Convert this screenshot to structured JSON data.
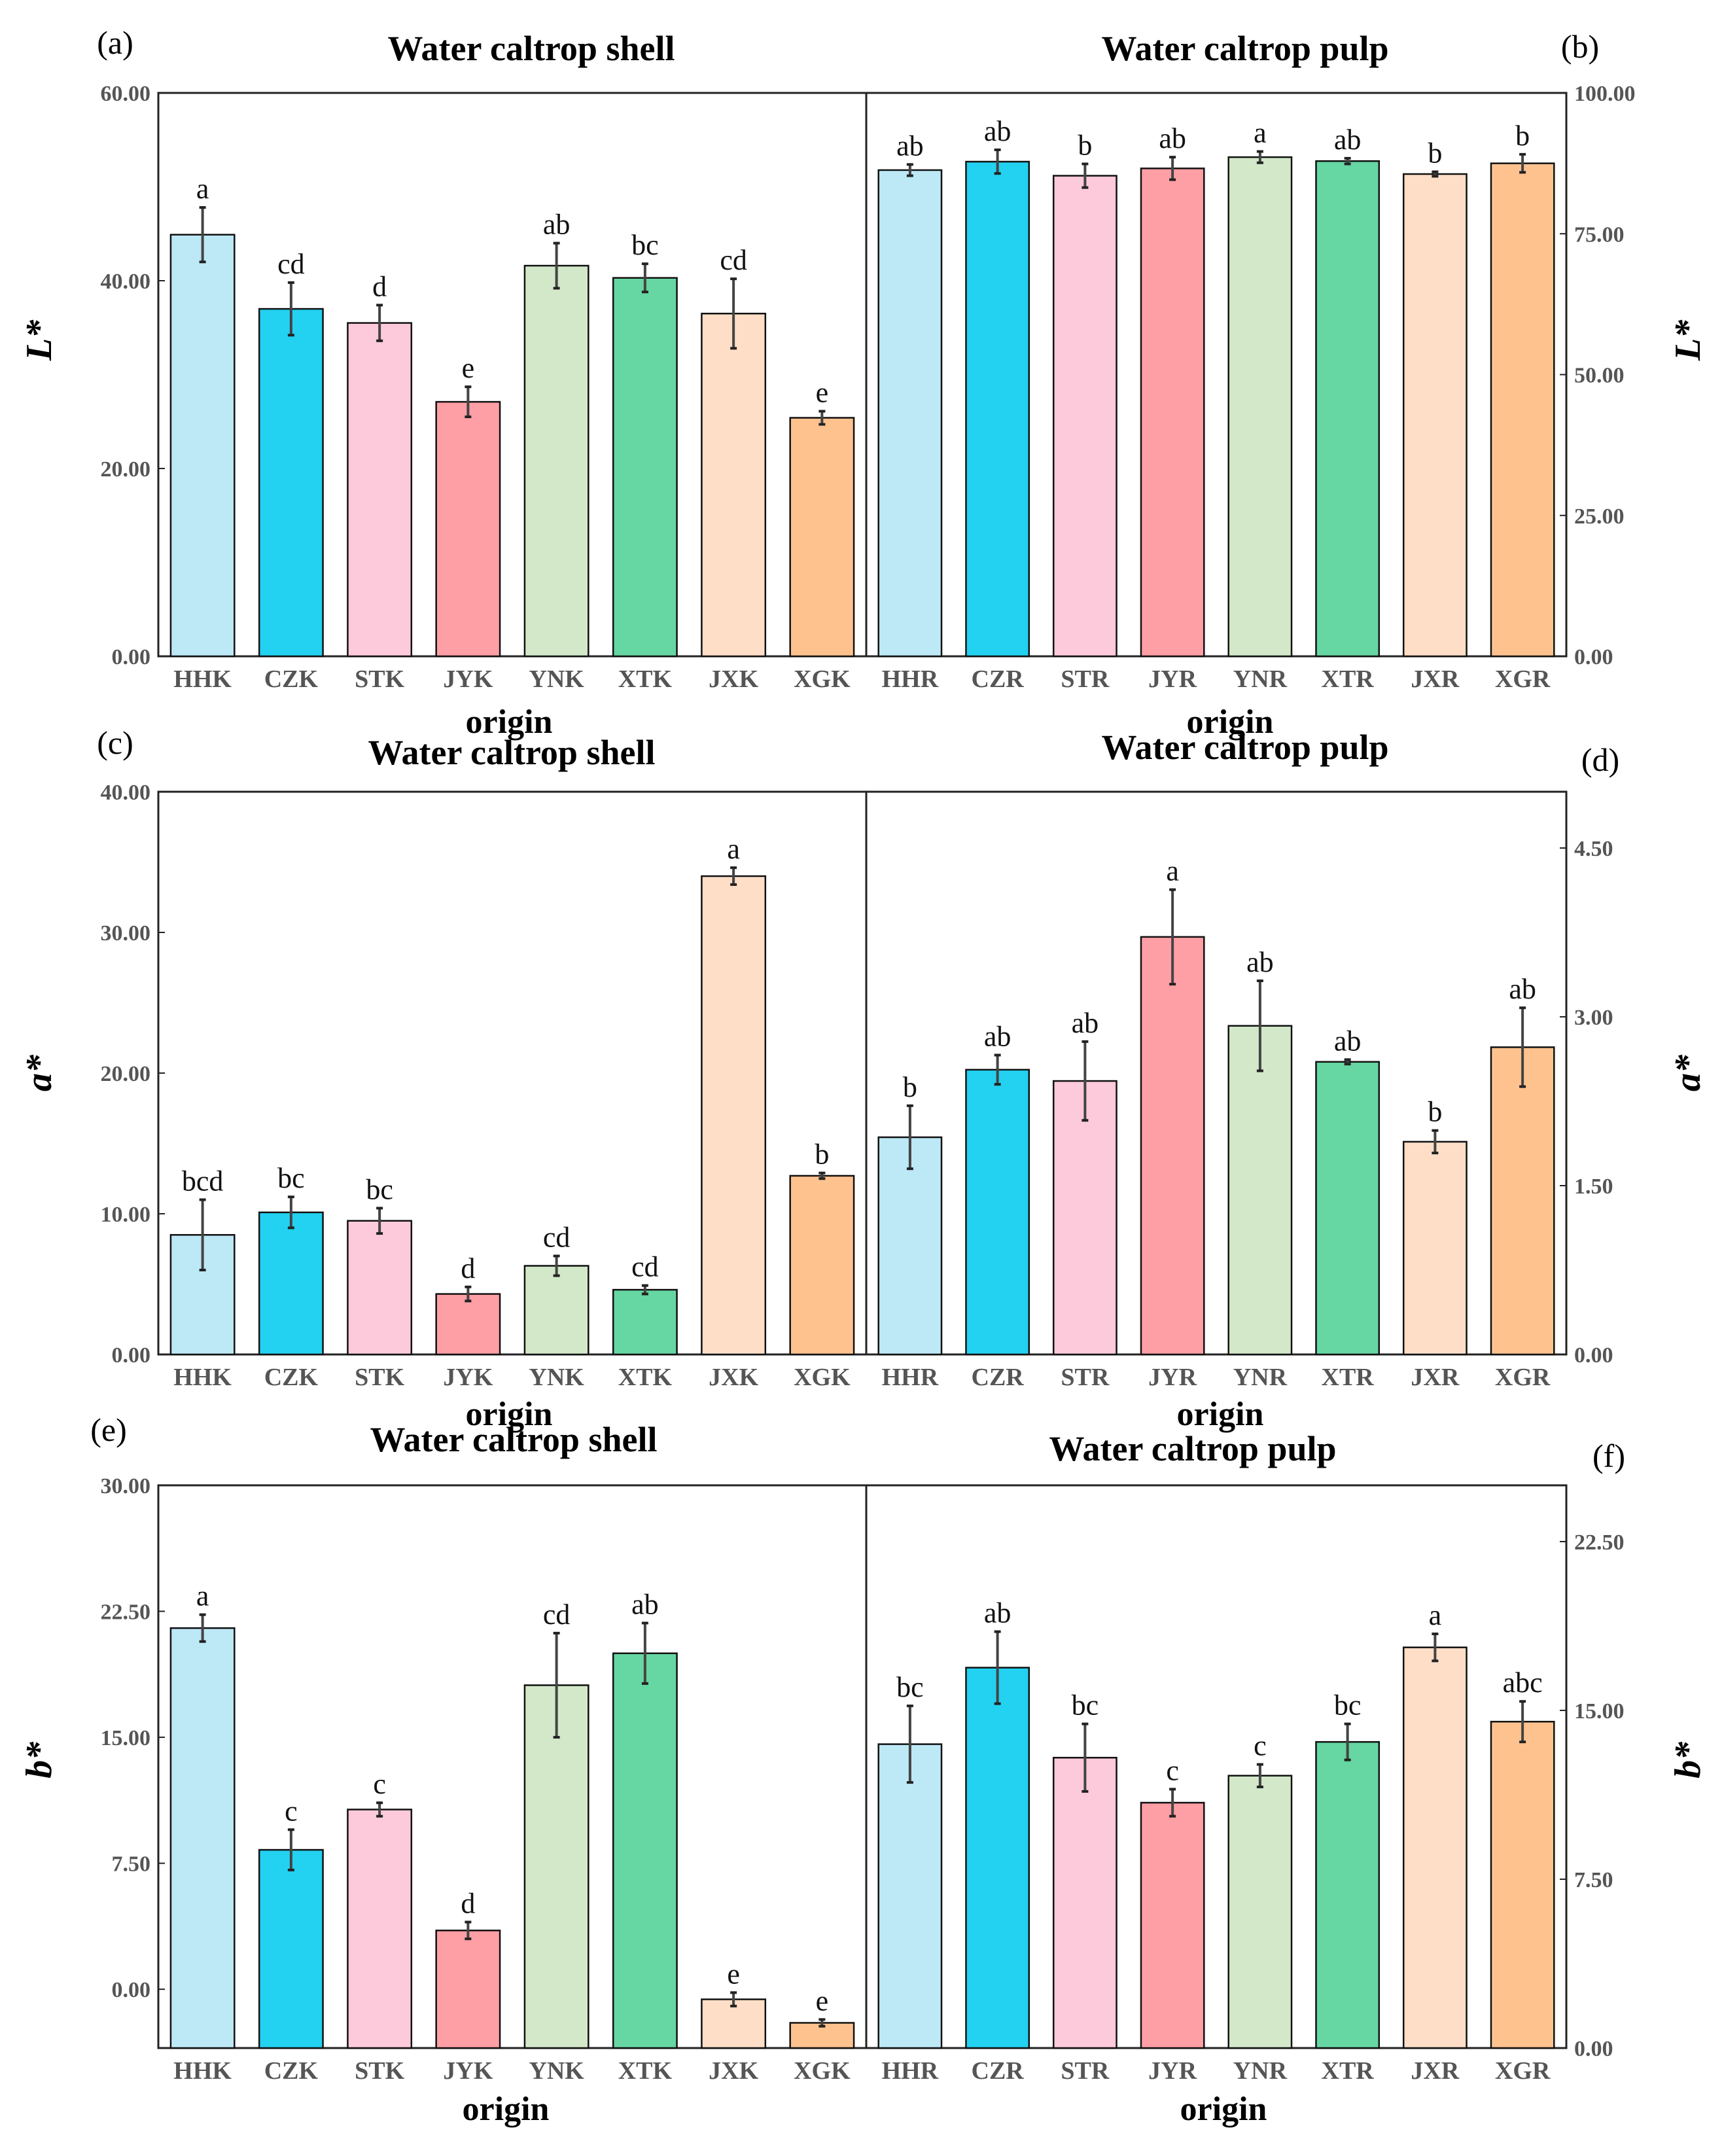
{
  "colors": [
    "#bde8f6",
    "#23d1f0",
    "#fdcadb",
    "#fe9ea5",
    "#d2e8c9",
    "#66d6a2",
    "#fedec7",
    "#fec28f"
  ],
  "chart_data": [
    {
      "id": "L",
      "type": "bar",
      "ylabel": "L*",
      "xlabel": "origin",
      "left": {
        "panel": "(a)",
        "title": "Water caltrop shell",
        "categories": [
          "HHK",
          "CZK",
          "STK",
          "JYK",
          "YNK",
          "XTK",
          "JXK",
          "XGK"
        ],
        "values": [
          44.9,
          37.0,
          35.5,
          27.1,
          41.6,
          40.3,
          36.5,
          25.4
        ],
        "errors": [
          2.9,
          2.8,
          1.9,
          1.6,
          2.4,
          1.5,
          3.7,
          0.7
        ],
        "letters": [
          "a",
          "cd",
          "d",
          "e",
          "ab",
          "bc",
          "cd",
          "e"
        ],
        "ylim": [
          0,
          60
        ],
        "yticks": [
          "0.00",
          "20.00",
          "40.00",
          "60.00"
        ],
        "ytick_values": [
          0,
          20,
          40,
          60
        ]
      },
      "right": {
        "panel": "(b)",
        "title": "Water caltrop pulp",
        "categories": [
          "HHR",
          "CZR",
          "STR",
          "JYR",
          "YNR",
          "XTR",
          "JXR",
          "XGR"
        ],
        "values": [
          86.3,
          87.8,
          85.3,
          86.6,
          88.6,
          87.9,
          85.6,
          87.5
        ],
        "errors": [
          1.0,
          2.1,
          2.1,
          2.0,
          1.0,
          0.5,
          0.4,
          1.6
        ],
        "letters": [
          "ab",
          "ab",
          "b",
          "ab",
          "a",
          "ab",
          "b",
          "b"
        ],
        "ylim": [
          0,
          100
        ],
        "yticks": [
          "0.00",
          "25.00",
          "50.00",
          "75.00",
          "100.00"
        ],
        "ytick_values": [
          0,
          25,
          50,
          75,
          100
        ]
      }
    },
    {
      "id": "a",
      "type": "bar",
      "ylabel": "a*",
      "xlabel": "origin",
      "left": {
        "panel": "(c)",
        "title": "Water caltrop shell",
        "categories": [
          "HHK",
          "CZK",
          "STK",
          "JYK",
          "YNK",
          "XTK",
          "JXK",
          "XGK"
        ],
        "values": [
          8.5,
          10.1,
          9.5,
          4.3,
          6.3,
          4.6,
          34.0,
          12.7
        ],
        "errors": [
          2.5,
          1.1,
          0.9,
          0.5,
          0.7,
          0.3,
          0.6,
          0.2
        ],
        "letters": [
          "bcd",
          "bc",
          "bc",
          "d",
          "cd",
          "cd",
          "a",
          "b"
        ],
        "ylim": [
          0,
          40
        ],
        "yticks": [
          "0.00",
          "10.00",
          "20.00",
          "30.00",
          "40.00"
        ],
        "ytick_values": [
          0,
          10,
          20,
          30,
          40
        ]
      },
      "right": {
        "panel": "(d)",
        "title": "Water caltrop pulp",
        "categories": [
          "HHR",
          "CZR",
          "STR",
          "JYR",
          "YNR",
          "XTR",
          "JXR",
          "XGR"
        ],
        "values": [
          1.93,
          2.53,
          2.43,
          3.71,
          2.92,
          2.6,
          1.89,
          2.73
        ],
        "errors": [
          0.28,
          0.13,
          0.35,
          0.42,
          0.4,
          0.02,
          0.1,
          0.35
        ],
        "letters": [
          "b",
          "ab",
          "ab",
          "a",
          "ab",
          "ab",
          "b",
          "ab"
        ],
        "ylim": [
          0,
          5
        ],
        "yticks": [
          "0.00",
          "1.50",
          "3.00",
          "4.50"
        ],
        "ytick_values": [
          0,
          1.5,
          3.0,
          4.5
        ]
      }
    },
    {
      "id": "b",
      "type": "bar",
      "ylabel": "b*",
      "xlabel": "origin",
      "left": {
        "panel": "(e)",
        "title": "Water caltrop shell",
        "categories": [
          "HHK",
          "CZK",
          "STK",
          "JYK",
          "YNK",
          "XTK",
          "JXK",
          "XGK"
        ],
        "values": [
          21.5,
          8.3,
          10.7,
          3.5,
          18.1,
          20.0,
          -0.6,
          -2.0
        ],
        "errors": [
          0.8,
          1.2,
          0.4,
          0.5,
          3.1,
          1.8,
          0.4,
          0.2
        ],
        "letters": [
          "a",
          "c",
          "c",
          "d",
          "cd",
          "ab",
          "e",
          "e"
        ],
        "ylim": [
          -3.5,
          30
        ],
        "yticks": [
          "0.00",
          "7.50",
          "15.00",
          "22.50",
          "30.00"
        ],
        "ytick_values": [
          0,
          7.5,
          15,
          22.5,
          30
        ]
      },
      "right": {
        "panel": "(f)",
        "title": "Water caltrop pulp",
        "categories": [
          "HHR",
          "CZR",
          "STR",
          "JYR",
          "YNR",
          "XTR",
          "JXR",
          "XGR"
        ],
        "values": [
          13.5,
          16.9,
          12.9,
          10.9,
          12.1,
          13.6,
          17.8,
          14.5
        ],
        "errors": [
          1.7,
          1.6,
          1.5,
          0.6,
          0.5,
          0.8,
          0.6,
          0.9
        ],
        "letters": [
          "bc",
          "ab",
          "bc",
          "c",
          "c",
          "bc",
          "a",
          "abc"
        ],
        "ylim": [
          0,
          25
        ],
        "yticks": [
          "0.00",
          "7.50",
          "15.00",
          "22.50"
        ],
        "ytick_values": [
          0,
          7.5,
          15,
          22.5
        ]
      }
    }
  ]
}
